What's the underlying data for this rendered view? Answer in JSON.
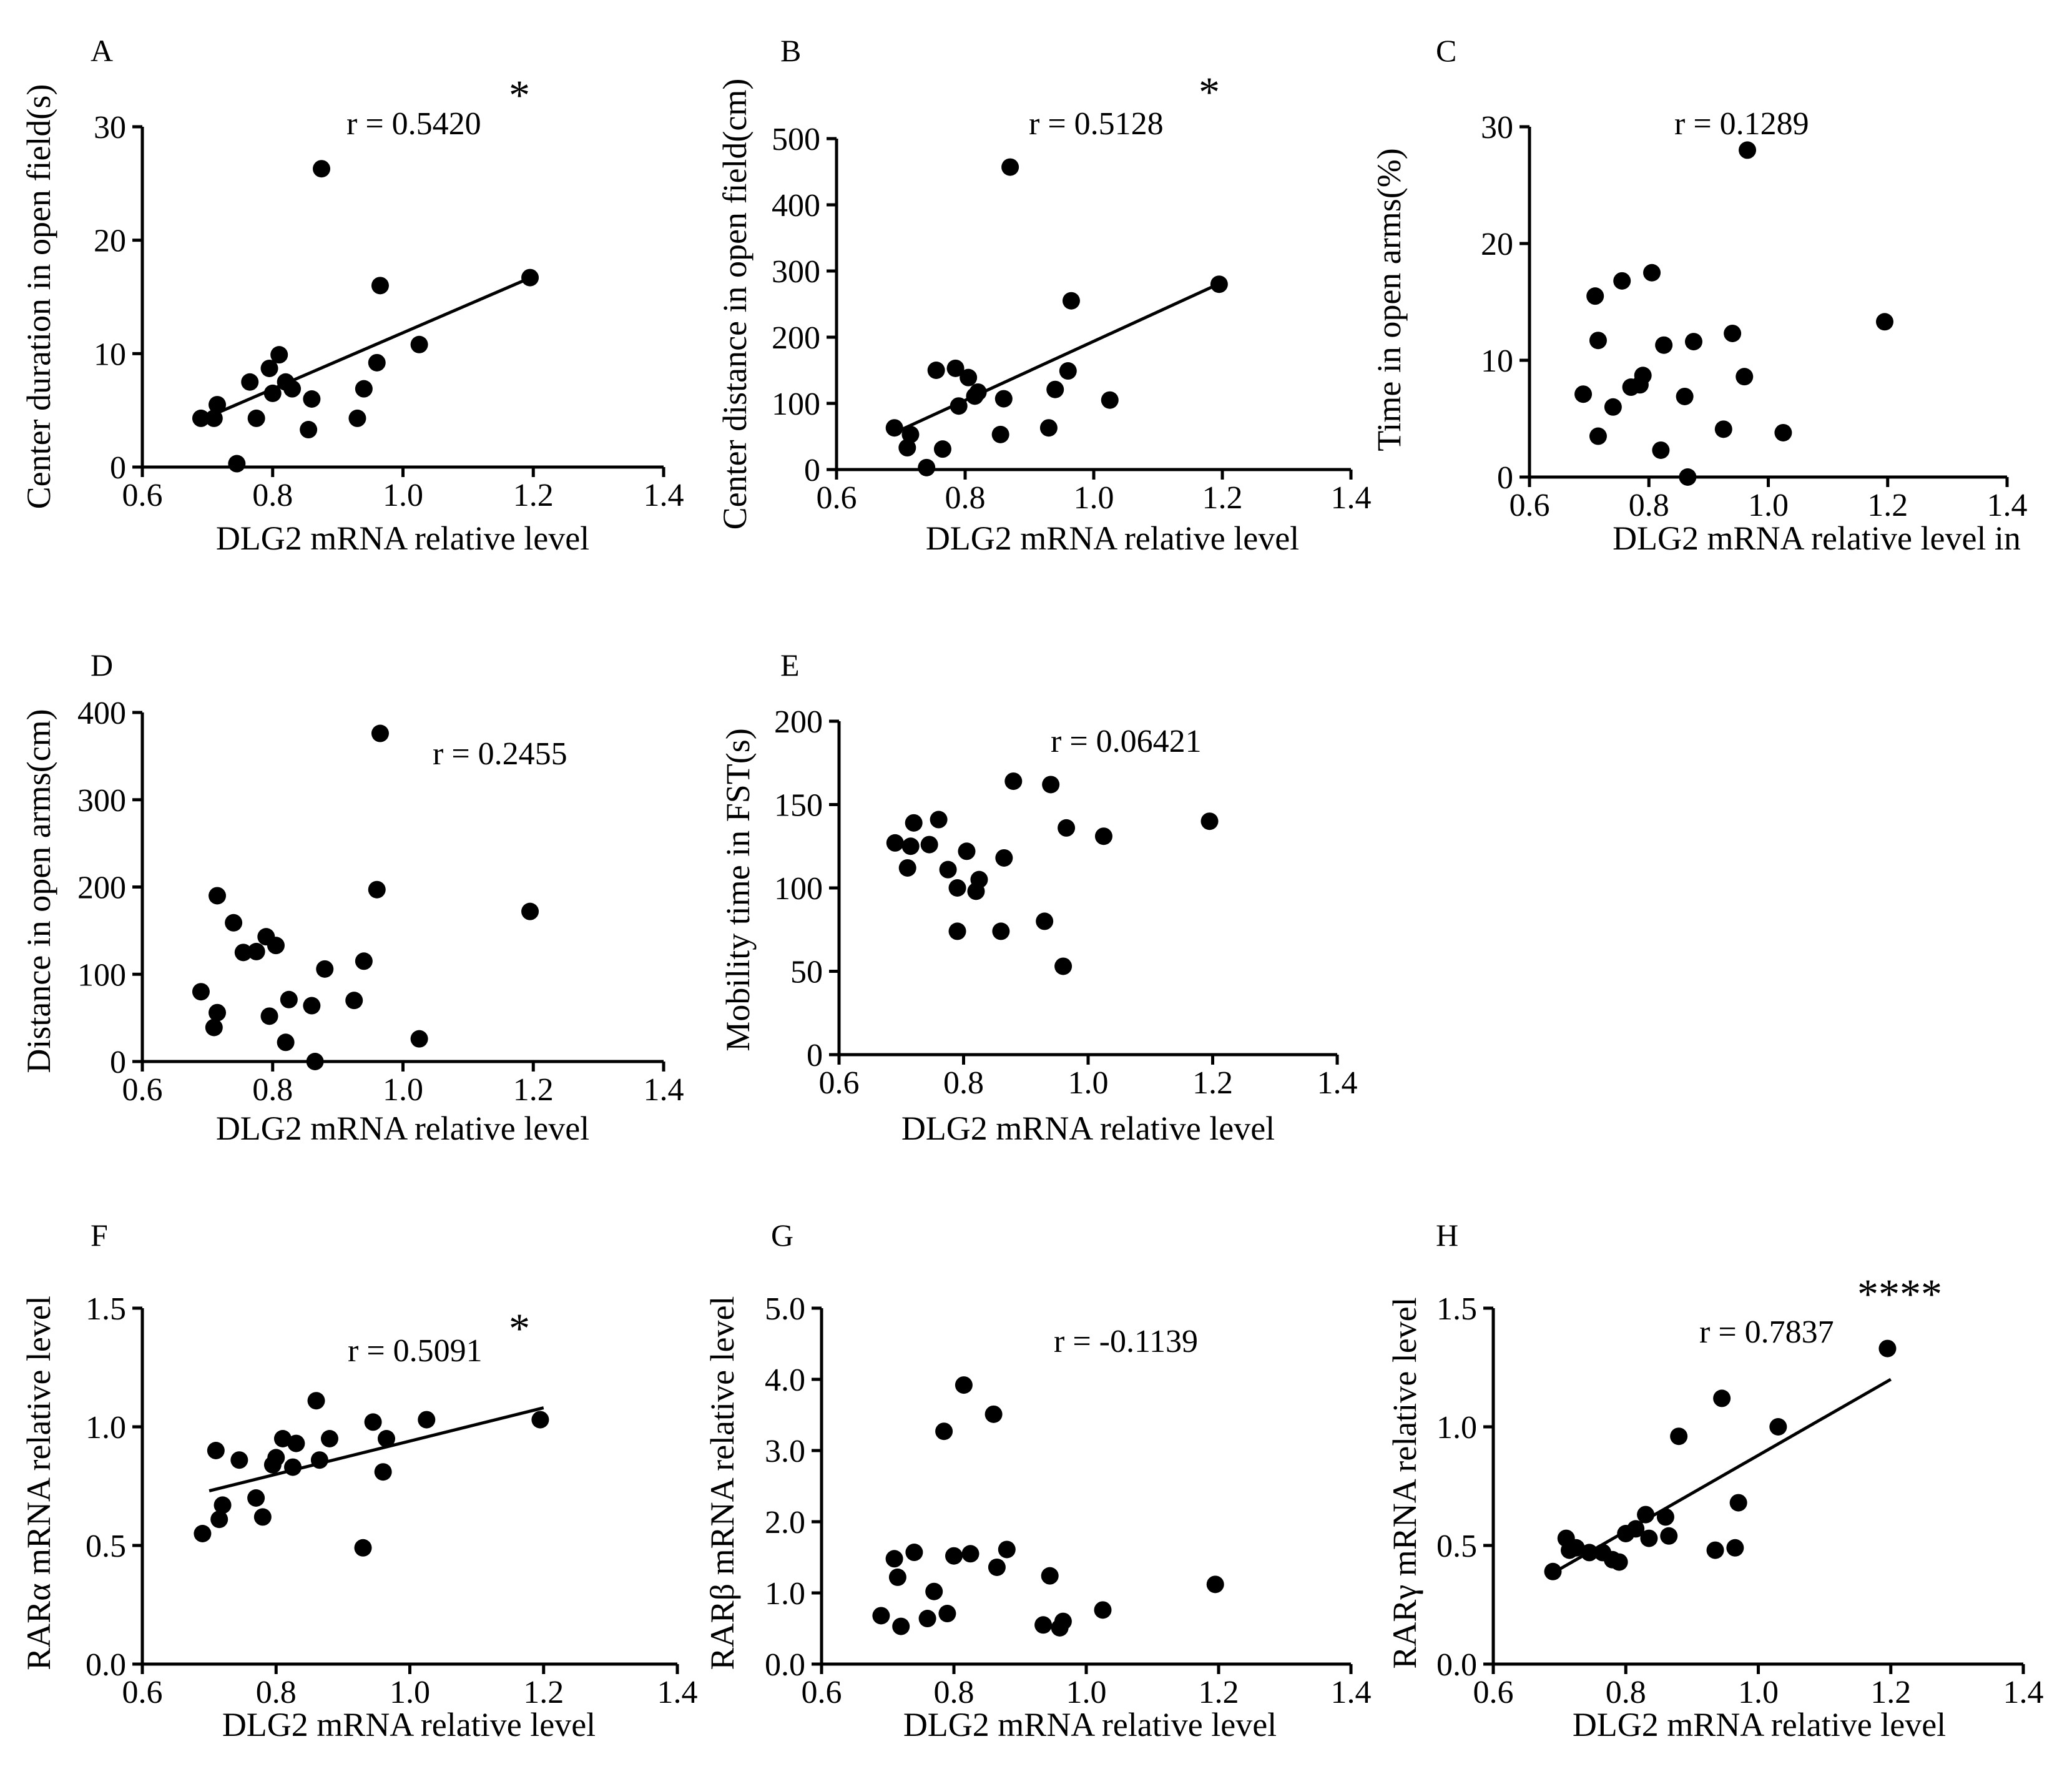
{
  "figure": {
    "background": "#ffffff",
    "ink": "#000000"
  },
  "chart_data": [
    {
      "id": "A",
      "type": "scatter",
      "letter": "A",
      "xlabel": "DLG2 mRNA relative level",
      "ylabel": "Center duration in open field(s)",
      "xlim": [
        0.6,
        1.4
      ],
      "ylim": [
        0,
        30
      ],
      "xticks": [
        0.6,
        0.8,
        1.0,
        1.2,
        1.4
      ],
      "xtick_labels": [
        "0.6",
        "0.8",
        "1.0",
        "1.2",
        "1.4"
      ],
      "yticks": [
        0,
        10,
        20,
        30
      ],
      "ytick_labels": [
        "0",
        "10",
        "20",
        "30"
      ],
      "r_text": "r = 0.5420",
      "significance": "*",
      "regression": {
        "x": [
          0.7,
          1.2
        ],
        "y": [
          4.4,
          16.8
        ]
      },
      "points": [
        [
          0.69,
          4.3
        ],
        [
          0.71,
          4.3
        ],
        [
          0.715,
          5.5
        ],
        [
          0.745,
          0.3
        ],
        [
          0.765,
          7.5
        ],
        [
          0.775,
          4.3
        ],
        [
          0.795,
          8.7
        ],
        [
          0.8,
          6.5
        ],
        [
          0.81,
          9.9
        ],
        [
          0.82,
          7.5
        ],
        [
          0.83,
          6.9
        ],
        [
          0.855,
          3.3
        ],
        [
          0.86,
          6.0
        ],
        [
          0.875,
          26.3
        ],
        [
          0.93,
          4.3
        ],
        [
          0.94,
          6.9
        ],
        [
          0.96,
          9.2
        ],
        [
          0.965,
          16.0
        ],
        [
          1.025,
          10.8
        ],
        [
          1.195,
          16.7
        ]
      ]
    },
    {
      "id": "B",
      "type": "scatter",
      "letter": "B",
      "xlabel": "DLG2 mRNA relative level",
      "ylabel": "Center distance in open field(cm)",
      "xlim": [
        0.6,
        1.4
      ],
      "ylim": [
        0,
        500
      ],
      "xticks": [
        0.6,
        0.8,
        1.0,
        1.2,
        1.4
      ],
      "xtick_labels": [
        "0.6",
        "0.8",
        "1.0",
        "1.2",
        "1.4"
      ],
      "yticks": [
        0,
        100,
        200,
        300,
        400,
        500
      ],
      "ytick_labels": [
        "0",
        "100",
        "200",
        "300",
        "400",
        "500"
      ],
      "r_text": "r = 0.5128",
      "significance": "*",
      "regression": {
        "x": [
          0.7,
          1.2
        ],
        "y": [
          60,
          283
        ]
      },
      "points": [
        [
          0.69,
          63
        ],
        [
          0.71,
          33
        ],
        [
          0.715,
          53
        ],
        [
          0.74,
          3
        ],
        [
          0.755,
          150
        ],
        [
          0.765,
          31
        ],
        [
          0.785,
          153
        ],
        [
          0.79,
          96
        ],
        [
          0.805,
          139
        ],
        [
          0.815,
          111
        ],
        [
          0.82,
          117
        ],
        [
          0.855,
          53
        ],
        [
          0.86,
          107
        ],
        [
          0.87,
          457
        ],
        [
          0.93,
          63
        ],
        [
          0.94,
          121
        ],
        [
          0.96,
          149
        ],
        [
          0.965,
          255
        ],
        [
          1.025,
          105
        ],
        [
          1.195,
          280
        ]
      ]
    },
    {
      "id": "C",
      "type": "scatter",
      "letter": "C",
      "xlabel": "DLG2 mRNA relative level in",
      "ylabel": "Time in open arms(%)",
      "xlim": [
        0.6,
        1.4
      ],
      "ylim": [
        0,
        30
      ],
      "xticks": [
        0.6,
        0.8,
        1.0,
        1.2,
        1.4
      ],
      "xtick_labels": [
        "0.6",
        "0.8",
        "1.0",
        "1.2",
        "1.4"
      ],
      "yticks": [
        0,
        10,
        20,
        30
      ],
      "ytick_labels": [
        "0",
        "10",
        "20",
        "30"
      ],
      "r_text": "r = 0.1289",
      "significance": "",
      "regression": null,
      "points": [
        [
          0.69,
          7.1
        ],
        [
          0.71,
          15.5
        ],
        [
          0.715,
          11.7
        ],
        [
          0.715,
          3.5
        ],
        [
          0.74,
          6.0
        ],
        [
          0.755,
          16.8
        ],
        [
          0.77,
          7.7
        ],
        [
          0.785,
          7.9
        ],
        [
          0.79,
          8.7
        ],
        [
          0.805,
          17.5
        ],
        [
          0.82,
          2.3
        ],
        [
          0.825,
          11.3
        ],
        [
          0.86,
          6.9
        ],
        [
          0.865,
          0.0
        ],
        [
          0.875,
          11.6
        ],
        [
          0.925,
          4.1
        ],
        [
          0.94,
          12.3
        ],
        [
          0.96,
          8.6
        ],
        [
          0.965,
          28.0
        ],
        [
          1.025,
          3.8
        ],
        [
          1.195,
          13.3
        ]
      ]
    },
    {
      "id": "D",
      "type": "scatter",
      "letter": "D",
      "xlabel": "DLG2 mRNA relative level",
      "ylabel": "Distance in open arms(cm)",
      "xlim": [
        0.6,
        1.4
      ],
      "ylim": [
        0,
        400
      ],
      "xticks": [
        0.6,
        0.8,
        1.0,
        1.2,
        1.4
      ],
      "xtick_labels": [
        "0.6",
        "0.8",
        "1.0",
        "1.2",
        "1.4"
      ],
      "yticks": [
        0,
        100,
        200,
        300,
        400
      ],
      "ytick_labels": [
        "0",
        "100",
        "200",
        "300",
        "400"
      ],
      "r_text": "r = 0.2455",
      "significance": "",
      "regression": null,
      "points": [
        [
          0.69,
          80
        ],
        [
          0.71,
          39
        ],
        [
          0.715,
          56
        ],
        [
          0.715,
          190
        ],
        [
          0.74,
          159
        ],
        [
          0.755,
          125
        ],
        [
          0.775,
          126
        ],
        [
          0.79,
          143
        ],
        [
          0.795,
          52
        ],
        [
          0.805,
          133
        ],
        [
          0.82,
          22
        ],
        [
          0.825,
          71
        ],
        [
          0.86,
          64
        ],
        [
          0.865,
          0
        ],
        [
          0.88,
          106
        ],
        [
          0.925,
          70
        ],
        [
          0.94,
          115
        ],
        [
          0.96,
          197
        ],
        [
          0.965,
          376
        ],
        [
          1.025,
          26
        ],
        [
          1.195,
          172
        ]
      ]
    },
    {
      "id": "E",
      "type": "scatter",
      "letter": "E",
      "xlabel": "DLG2 mRNA relative level",
      "ylabel": "Mobility time in FST(s)",
      "xlim": [
        0.6,
        1.4
      ],
      "ylim": [
        0,
        200
      ],
      "xticks": [
        0.6,
        0.8,
        1.0,
        1.2,
        1.4
      ],
      "xtick_labels": [
        "0.6",
        "0.8",
        "1.0",
        "1.2",
        "1.4"
      ],
      "yticks": [
        0,
        50,
        100,
        150,
        200
      ],
      "ytick_labels": [
        "0",
        "50",
        "100",
        "150",
        "200"
      ],
      "r_text": "r = 0.06421",
      "significance": "",
      "regression": null,
      "points": [
        [
          0.69,
          127
        ],
        [
          0.71,
          112
        ],
        [
          0.715,
          125
        ],
        [
          0.72,
          139
        ],
        [
          0.745,
          126
        ],
        [
          0.76,
          141
        ],
        [
          0.775,
          111
        ],
        [
          0.79,
          74
        ],
        [
          0.79,
          100
        ],
        [
          0.805,
          122
        ],
        [
          0.82,
          98
        ],
        [
          0.825,
          105
        ],
        [
          0.86,
          74
        ],
        [
          0.865,
          118
        ],
        [
          0.88,
          164
        ],
        [
          0.93,
          80
        ],
        [
          0.94,
          162
        ],
        [
          0.96,
          53
        ],
        [
          0.965,
          136
        ],
        [
          1.025,
          131
        ],
        [
          1.195,
          140
        ]
      ]
    },
    {
      "id": "F",
      "type": "scatter",
      "letter": "F",
      "xlabel": "DLG2 mRNA relative level",
      "ylabel": "RARα mRNA relative level",
      "xlim": [
        0.6,
        1.4
      ],
      "ylim": [
        0.0,
        1.5
      ],
      "xticks": [
        0.6,
        0.8,
        1.0,
        1.2,
        1.4
      ],
      "xtick_labels": [
        "0.6",
        "0.8",
        "1.0",
        "1.2",
        "1.4"
      ],
      "yticks": [
        0.0,
        0.5,
        1.0,
        1.5
      ],
      "ytick_labels": [
        "0.0",
        "0.5",
        "1.0",
        "1.5"
      ],
      "r_text": "r = 0.5091",
      "significance": "*",
      "regression": {
        "x": [
          0.7,
          1.2
        ],
        "y": [
          0.73,
          1.08
        ]
      },
      "points": [
        [
          0.69,
          0.55
        ],
        [
          0.71,
          0.9
        ],
        [
          0.715,
          0.61
        ],
        [
          0.72,
          0.67
        ],
        [
          0.745,
          0.86
        ],
        [
          0.77,
          0.7
        ],
        [
          0.78,
          0.62
        ],
        [
          0.795,
          0.84
        ],
        [
          0.8,
          0.87
        ],
        [
          0.81,
          0.95
        ],
        [
          0.825,
          0.83
        ],
        [
          0.83,
          0.93
        ],
        [
          0.86,
          1.11
        ],
        [
          0.865,
          0.86
        ],
        [
          0.88,
          0.95
        ],
        [
          0.93,
          0.49
        ],
        [
          0.945,
          1.02
        ],
        [
          0.96,
          0.81
        ],
        [
          0.965,
          0.95
        ],
        [
          1.025,
          1.03
        ],
        [
          1.195,
          1.03
        ]
      ]
    },
    {
      "id": "G",
      "type": "scatter",
      "letter": "G",
      "xlabel": "DLG2 mRNA relative level",
      "ylabel": "RARβ mRNA relative level",
      "xlim": [
        0.6,
        1.4
      ],
      "ylim": [
        0.0,
        5.0
      ],
      "xticks": [
        0.6,
        0.8,
        1.0,
        1.2,
        1.4
      ],
      "xtick_labels": [
        "0.6",
        "0.8",
        "1.0",
        "1.2",
        "1.4"
      ],
      "yticks": [
        0.0,
        1.0,
        2.0,
        3.0,
        4.0,
        5.0
      ],
      "ytick_labels": [
        "0.0",
        "1.0",
        "2.0",
        "3.0",
        "4.0",
        "5.0"
      ],
      "r_text": "r = -0.1139",
      "significance": "",
      "regression": null,
      "points": [
        [
          0.69,
          0.68
        ],
        [
          0.71,
          1.48
        ],
        [
          0.715,
          1.22
        ],
        [
          0.72,
          0.53
        ],
        [
          0.74,
          1.57
        ],
        [
          0.76,
          0.64
        ],
        [
          0.77,
          1.02
        ],
        [
          0.785,
          3.27
        ],
        [
          0.79,
          0.71
        ],
        [
          0.8,
          1.52
        ],
        [
          0.815,
          3.92
        ],
        [
          0.825,
          1.55
        ],
        [
          0.86,
          3.51
        ],
        [
          0.865,
          1.36
        ],
        [
          0.88,
          1.61
        ],
        [
          0.935,
          0.55
        ],
        [
          0.945,
          1.24
        ],
        [
          0.96,
          0.51
        ],
        [
          0.965,
          0.6
        ],
        [
          1.025,
          0.76
        ],
        [
          1.195,
          1.12
        ]
      ]
    },
    {
      "id": "H",
      "type": "scatter",
      "letter": "H",
      "xlabel": "DLG2 mRNA relative level",
      "ylabel": "RARγ mRNA relative level",
      "xlim": [
        0.6,
        1.4
      ],
      "ylim": [
        0.0,
        1.5
      ],
      "xticks": [
        0.6,
        0.8,
        1.0,
        1.2,
        1.4
      ],
      "xtick_labels": [
        "0.6",
        "0.8",
        "1.0",
        "1.2",
        "1.4"
      ],
      "yticks": [
        0.0,
        0.5,
        1.0,
        1.5
      ],
      "ytick_labels": [
        "0.0",
        "0.5",
        "1.0",
        "1.5"
      ],
      "r_text": "r = 0.7837",
      "significance": "****",
      "regression": {
        "x": [
          0.7,
          1.2
        ],
        "y": [
          0.4,
          1.2
        ]
      },
      "points": [
        [
          0.69,
          0.39
        ],
        [
          0.71,
          0.53
        ],
        [
          0.715,
          0.48
        ],
        [
          0.725,
          0.49
        ],
        [
          0.745,
          0.47
        ],
        [
          0.765,
          0.47
        ],
        [
          0.78,
          0.44
        ],
        [
          0.79,
          0.43
        ],
        [
          0.8,
          0.55
        ],
        [
          0.815,
          0.57
        ],
        [
          0.83,
          0.63
        ],
        [
          0.835,
          0.53
        ],
        [
          0.86,
          0.62
        ],
        [
          0.865,
          0.54
        ],
        [
          0.88,
          0.96
        ],
        [
          0.935,
          0.48
        ],
        [
          0.945,
          1.12
        ],
        [
          0.965,
          0.49
        ],
        [
          0.97,
          0.68
        ],
        [
          1.03,
          1.0
        ],
        [
          1.195,
          1.33
        ]
      ]
    }
  ]
}
